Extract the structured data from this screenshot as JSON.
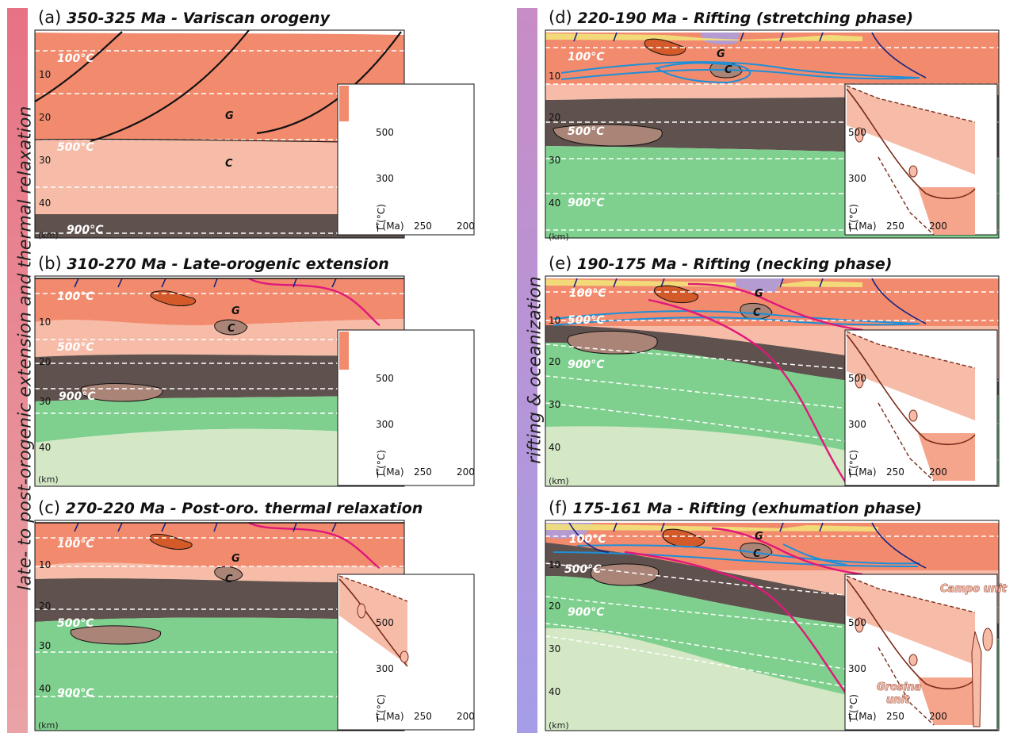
{
  "side_labels": {
    "left": "late- to post-orogenic extension and thermal relaxation",
    "right": "rifting & oceanization"
  },
  "colors": {
    "upper_crust": "#f28b6e",
    "lower_crust": "#f7bca8",
    "lower_crust_dark": "#5f514d",
    "mantle": "#7fd08e",
    "mantle_light": "#d4e8c6",
    "sediment": "#f2e27a",
    "water": "#b49bd0",
    "granite": "#d45a2a",
    "gabbro": "#a98477",
    "magenta_fault": "#e0187a",
    "blue_shear": "#1e8fd8",
    "left_bar": "#e26c7a",
    "right_bar": "#b08ad0"
  },
  "panels": [
    {
      "id": "a",
      "letter": "(a)",
      "title": "350-325 Ma - Variscan orogeny",
      "depth_ticks": [
        "10",
        "20",
        "30",
        "40"
      ],
      "km": "(km)",
      "isotherms": {
        "t100": "100°C",
        "t500": "500°C",
        "t900": "900°C"
      },
      "g": "G",
      "c": "C",
      "inset": {
        "y1": "500",
        "y2": "300",
        "ylabel": "T (°C)",
        "xlabel": "t (Ma)",
        "x1": "250",
        "x2": "200"
      }
    },
    {
      "id": "b",
      "letter": "(b)",
      "title": "310-270 Ma - Late-orogenic extension",
      "depth_ticks": [
        "10",
        "20",
        "30",
        "40"
      ],
      "km": "(km)",
      "isotherms": {
        "t100": "100°C",
        "t500": "500°C",
        "t900": "900°C"
      },
      "g": "G",
      "c": "C",
      "inset": {
        "y1": "500",
        "y2": "300",
        "ylabel": "T (°C)",
        "xlabel": "t (Ma)",
        "x1": "250",
        "x2": "200"
      }
    },
    {
      "id": "c",
      "letter": "(c)",
      "title": "270-220 Ma - Post-oro. thermal relaxation",
      "depth_ticks": [
        "10",
        "20",
        "30",
        "40"
      ],
      "km": "(km)",
      "isotherms": {
        "t100": "100°C",
        "t500": "500°C",
        "t900": "900°C"
      },
      "g": "G",
      "c": "C",
      "inset": {
        "y1": "500",
        "y2": "300",
        "ylabel": "T (°C)",
        "xlabel": "t (Ma)",
        "x1": "250",
        "x2": "200"
      }
    },
    {
      "id": "d",
      "letter": "(d)",
      "title": "220-190 Ma - Rifting (stretching phase)",
      "depth_ticks": [
        "10",
        "20",
        "30",
        "40"
      ],
      "km": "(km)",
      "isotherms": {
        "t100": "100°C",
        "t500": "500°C",
        "t900": "900°C"
      },
      "g": "G",
      "c": "C",
      "inset": {
        "y1": "500",
        "y2": "300",
        "ylabel": "T (°C)",
        "xlabel": "t (Ma)",
        "x1": "250",
        "x2": "200"
      }
    },
    {
      "id": "e",
      "letter": "(e)",
      "title": "190-175 Ma - Rifting (necking phase)",
      "depth_ticks": [
        "10",
        "20",
        "30",
        "40"
      ],
      "km": "(km)",
      "isotherms": {
        "t100": "100°C",
        "t500": "500°C",
        "t900": "900°C"
      },
      "g": "G",
      "c": "C",
      "inset": {
        "y1": "500",
        "y2": "300",
        "ylabel": "T (°C)",
        "xlabel": "t (Ma)",
        "x1": "250",
        "x2": "200"
      }
    },
    {
      "id": "f",
      "letter": "(f)",
      "title": "175-161 Ma - Rifting (exhumation phase)",
      "depth_ticks": [
        "10",
        "20",
        "30",
        "40"
      ],
      "km": "(km)",
      "isotherms": {
        "t100": "100°C",
        "t500": "500°C",
        "t900": "900°C"
      },
      "g": "G",
      "c": "C",
      "inset": {
        "y1": "500",
        "y2": "300",
        "ylabel": "T (°C)",
        "xlabel": "t (Ma)",
        "x1": "250",
        "x2": "200",
        "campo": "Campo unit",
        "grosina1": "Grosina",
        "grosina2": "unit"
      }
    }
  ]
}
